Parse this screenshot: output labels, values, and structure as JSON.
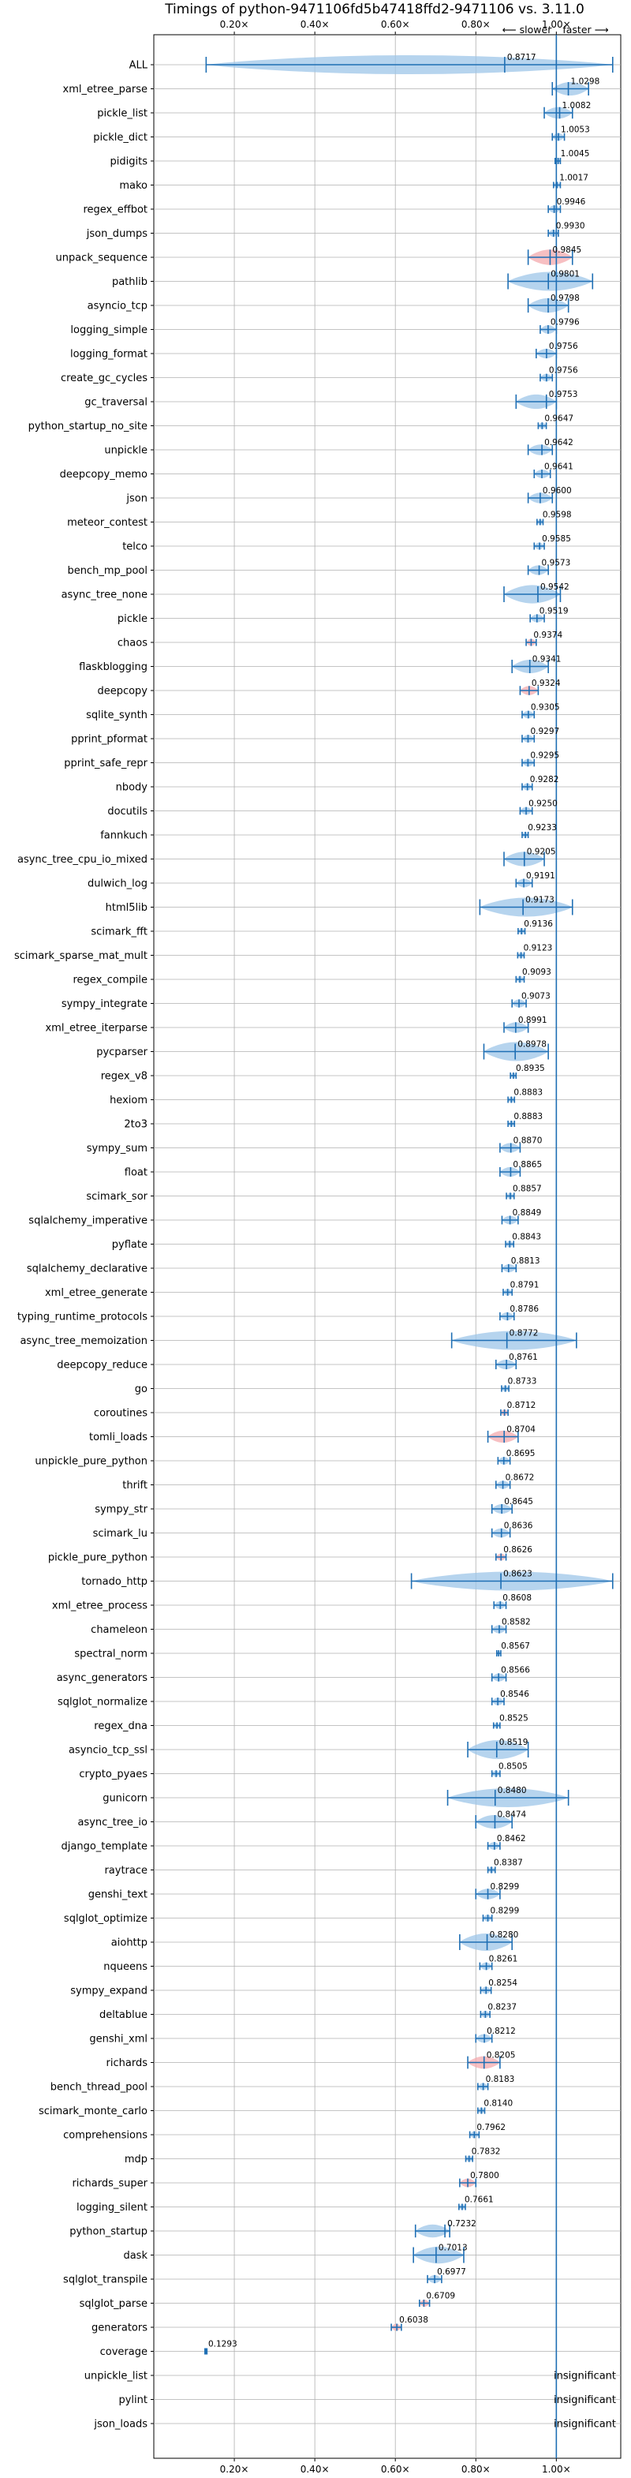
{
  "chart_data": {
    "type": "violin",
    "title": "Timings of python-9471106fd5b47418ffd2-9471106 vs. 3.11.0",
    "xlim": [
      0.0,
      1.16
    ],
    "x_ticks": [
      {
        "value": 0.2,
        "label": "0.20×"
      },
      {
        "value": 0.4,
        "label": "0.40×"
      },
      {
        "value": 0.6,
        "label": "0.60×"
      },
      {
        "value": 0.8,
        "label": "0.80×"
      },
      {
        "value": 1.0,
        "label": "1.00×"
      }
    ],
    "reference_line": 1.0,
    "direction_hint": {
      "slower": "⟵ slower",
      "faster": "faster ⟶"
    },
    "grid": true,
    "benchmarks": [
      {
        "name": "ALL",
        "median": 0.8717,
        "label": "0.8717",
        "min": 0.13,
        "max": 1.14,
        "highlight": false
      },
      {
        "name": "xml_etree_parse",
        "median": 1.0298,
        "label": "1.0298",
        "min": 0.99,
        "max": 1.08,
        "highlight": false
      },
      {
        "name": "pickle_list",
        "median": 1.0082,
        "label": "1.0082",
        "min": 0.97,
        "max": 1.04,
        "highlight": false
      },
      {
        "name": "pickle_dict",
        "median": 1.0053,
        "label": "1.0053",
        "min": 0.99,
        "max": 1.02,
        "highlight": false
      },
      {
        "name": "pidigits",
        "median": 1.0045,
        "label": "1.0045",
        "min": 0.997,
        "max": 1.01,
        "highlight": false
      },
      {
        "name": "mako",
        "median": 1.0017,
        "label": "1.0017",
        "min": 0.993,
        "max": 1.01,
        "highlight": false
      },
      {
        "name": "regex_effbot",
        "median": 0.9946,
        "label": "0.9946",
        "min": 0.98,
        "max": 1.01,
        "highlight": false
      },
      {
        "name": "json_dumps",
        "median": 0.993,
        "label": "0.9930",
        "min": 0.98,
        "max": 1.005,
        "highlight": false
      },
      {
        "name": "unpack_sequence",
        "median": 0.9845,
        "label": "0.9845",
        "min": 0.93,
        "max": 1.04,
        "highlight": true
      },
      {
        "name": "pathlib",
        "median": 0.9801,
        "label": "0.9801",
        "min": 0.88,
        "max": 1.09,
        "highlight": false
      },
      {
        "name": "asyncio_tcp",
        "median": 0.9798,
        "label": "0.9798",
        "min": 0.93,
        "max": 1.03,
        "highlight": false
      },
      {
        "name": "logging_simple",
        "median": 0.9796,
        "label": "0.9796",
        "min": 0.96,
        "max": 1.0,
        "highlight": false
      },
      {
        "name": "logging_format",
        "median": 0.9756,
        "label": "0.9756",
        "min": 0.95,
        "max": 1.0,
        "highlight": false
      },
      {
        "name": "create_gc_cycles",
        "median": 0.9756,
        "label": "0.9756",
        "min": 0.96,
        "max": 0.99,
        "highlight": false
      },
      {
        "name": "gc_traversal",
        "median": 0.9753,
        "label": "0.9753",
        "min": 0.9,
        "max": 1.0,
        "highlight": false
      },
      {
        "name": "python_startup_no_site",
        "median": 0.9647,
        "label": "0.9647",
        "min": 0.955,
        "max": 0.975,
        "highlight": false
      },
      {
        "name": "unpickle",
        "median": 0.9642,
        "label": "0.9642",
        "min": 0.93,
        "max": 0.99,
        "highlight": false
      },
      {
        "name": "deepcopy_memo",
        "median": 0.9641,
        "label": "0.9641",
        "min": 0.945,
        "max": 0.985,
        "highlight": false
      },
      {
        "name": "json",
        "median": 0.96,
        "label": "0.9600",
        "min": 0.93,
        "max": 0.99,
        "highlight": false
      },
      {
        "name": "meteor_contest",
        "median": 0.9598,
        "label": "0.9598",
        "min": 0.952,
        "max": 0.967,
        "highlight": false
      },
      {
        "name": "telco",
        "median": 0.9585,
        "label": "0.9585",
        "min": 0.945,
        "max": 0.97,
        "highlight": false
      },
      {
        "name": "bench_mp_pool",
        "median": 0.9573,
        "label": "0.9573",
        "min": 0.93,
        "max": 0.98,
        "highlight": false
      },
      {
        "name": "async_tree_none",
        "median": 0.9542,
        "label": "0.9542",
        "min": 0.87,
        "max": 1.01,
        "highlight": false
      },
      {
        "name": "pickle",
        "median": 0.9519,
        "label": "0.9519",
        "min": 0.935,
        "max": 0.97,
        "highlight": false
      },
      {
        "name": "chaos",
        "median": 0.9374,
        "label": "0.9374",
        "min": 0.925,
        "max": 0.95,
        "highlight": true
      },
      {
        "name": "flaskblogging",
        "median": 0.9341,
        "label": "0.9341",
        "min": 0.89,
        "max": 0.98,
        "highlight": false
      },
      {
        "name": "deepcopy",
        "median": 0.9324,
        "label": "0.9324",
        "min": 0.91,
        "max": 0.955,
        "highlight": true
      },
      {
        "name": "sqlite_synth",
        "median": 0.9305,
        "label": "0.9305",
        "min": 0.915,
        "max": 0.945,
        "highlight": false
      },
      {
        "name": "pprint_pformat",
        "median": 0.9297,
        "label": "0.9297",
        "min": 0.915,
        "max": 0.945,
        "highlight": false
      },
      {
        "name": "pprint_safe_repr",
        "median": 0.9295,
        "label": "0.9295",
        "min": 0.915,
        "max": 0.945,
        "highlight": false
      },
      {
        "name": "nbody",
        "median": 0.9282,
        "label": "0.9282",
        "min": 0.915,
        "max": 0.94,
        "highlight": false
      },
      {
        "name": "docutils",
        "median": 0.925,
        "label": "0.9250",
        "min": 0.91,
        "max": 0.94,
        "highlight": false
      },
      {
        "name": "fannkuch",
        "median": 0.9233,
        "label": "0.9233",
        "min": 0.915,
        "max": 0.93,
        "highlight": false
      },
      {
        "name": "async_tree_cpu_io_mixed",
        "median": 0.9205,
        "label": "0.9205",
        "min": 0.87,
        "max": 0.97,
        "highlight": false
      },
      {
        "name": "dulwich_log",
        "median": 0.9191,
        "label": "0.9191",
        "min": 0.9,
        "max": 0.94,
        "highlight": false
      },
      {
        "name": "html5lib",
        "median": 0.9173,
        "label": "0.9173",
        "min": 0.81,
        "max": 1.04,
        "highlight": false
      },
      {
        "name": "scimark_fft",
        "median": 0.9136,
        "label": "0.9136",
        "min": 0.905,
        "max": 0.922,
        "highlight": false
      },
      {
        "name": "scimark_sparse_mat_mult",
        "median": 0.9123,
        "label": "0.9123",
        "min": 0.904,
        "max": 0.92,
        "highlight": false
      },
      {
        "name": "regex_compile",
        "median": 0.9093,
        "label": "0.9093",
        "min": 0.9,
        "max": 0.92,
        "highlight": false
      },
      {
        "name": "sympy_integrate",
        "median": 0.9073,
        "label": "0.9073",
        "min": 0.89,
        "max": 0.925,
        "highlight": false
      },
      {
        "name": "xml_etree_iterparse",
        "median": 0.8991,
        "label": "0.8991",
        "min": 0.87,
        "max": 0.93,
        "highlight": false
      },
      {
        "name": "pycparser",
        "median": 0.8978,
        "label": "0.8978",
        "min": 0.82,
        "max": 0.98,
        "highlight": false
      },
      {
        "name": "regex_v8",
        "median": 0.8935,
        "label": "0.8935",
        "min": 0.886,
        "max": 0.9,
        "highlight": false
      },
      {
        "name": "hexiom",
        "median": 0.8883,
        "label": "0.8883",
        "min": 0.88,
        "max": 0.896,
        "highlight": false
      },
      {
        "name": "2to3",
        "median": 0.8883,
        "label": "0.8883",
        "min": 0.88,
        "max": 0.896,
        "highlight": false
      },
      {
        "name": "sympy_sum",
        "median": 0.887,
        "label": "0.8870",
        "min": 0.86,
        "max": 0.91,
        "highlight": false
      },
      {
        "name": "float",
        "median": 0.8865,
        "label": "0.8865",
        "min": 0.86,
        "max": 0.91,
        "highlight": false
      },
      {
        "name": "scimark_sor",
        "median": 0.8857,
        "label": "0.8857",
        "min": 0.876,
        "max": 0.895,
        "highlight": false
      },
      {
        "name": "sqlalchemy_imperative",
        "median": 0.8849,
        "label": "0.8849",
        "min": 0.865,
        "max": 0.905,
        "highlight": false
      },
      {
        "name": "pyflate",
        "median": 0.8843,
        "label": "0.8843",
        "min": 0.874,
        "max": 0.894,
        "highlight": false
      },
      {
        "name": "sqlalchemy_declarative",
        "median": 0.8813,
        "label": "0.8813",
        "min": 0.865,
        "max": 0.9,
        "highlight": false
      },
      {
        "name": "xml_etree_generate",
        "median": 0.8791,
        "label": "0.8791",
        "min": 0.868,
        "max": 0.89,
        "highlight": false
      },
      {
        "name": "typing_runtime_protocols",
        "median": 0.8786,
        "label": "0.8786",
        "min": 0.86,
        "max": 0.895,
        "highlight": false
      },
      {
        "name": "async_tree_memoization",
        "median": 0.8772,
        "label": "0.8772",
        "min": 0.74,
        "max": 1.05,
        "highlight": false
      },
      {
        "name": "deepcopy_reduce",
        "median": 0.8761,
        "label": "0.8761",
        "min": 0.85,
        "max": 0.9,
        "highlight": false
      },
      {
        "name": "go",
        "median": 0.8733,
        "label": "0.8733",
        "min": 0.864,
        "max": 0.882,
        "highlight": false
      },
      {
        "name": "coroutines",
        "median": 0.8712,
        "label": "0.8712",
        "min": 0.862,
        "max": 0.88,
        "highlight": true
      },
      {
        "name": "tomli_loads",
        "median": 0.8704,
        "label": "0.8704",
        "min": 0.83,
        "max": 0.905,
        "highlight": true
      },
      {
        "name": "unpickle_pure_python",
        "median": 0.8695,
        "label": "0.8695",
        "min": 0.855,
        "max": 0.885,
        "highlight": false
      },
      {
        "name": "thrift",
        "median": 0.8672,
        "label": "0.8672",
        "min": 0.85,
        "max": 0.885,
        "highlight": false
      },
      {
        "name": "sympy_str",
        "median": 0.8645,
        "label": "0.8645",
        "min": 0.84,
        "max": 0.89,
        "highlight": false
      },
      {
        "name": "scimark_lu",
        "median": 0.8636,
        "label": "0.8636",
        "min": 0.84,
        "max": 0.885,
        "highlight": false
      },
      {
        "name": "pickle_pure_python",
        "median": 0.8626,
        "label": "0.8626",
        "min": 0.85,
        "max": 0.875,
        "highlight": true
      },
      {
        "name": "tornado_http",
        "median": 0.8623,
        "label": "0.8623",
        "min": 0.64,
        "max": 1.14,
        "highlight": false
      },
      {
        "name": "xml_etree_process",
        "median": 0.8608,
        "label": "0.8608",
        "min": 0.845,
        "max": 0.875,
        "highlight": false
      },
      {
        "name": "chameleon",
        "median": 0.8582,
        "label": "0.8582",
        "min": 0.84,
        "max": 0.875,
        "highlight": false
      },
      {
        "name": "spectral_norm",
        "median": 0.8567,
        "label": "0.8567",
        "min": 0.852,
        "max": 0.862,
        "highlight": false
      },
      {
        "name": "async_generators",
        "median": 0.8566,
        "label": "0.8566",
        "min": 0.84,
        "max": 0.875,
        "highlight": false
      },
      {
        "name": "sqlglot_normalize",
        "median": 0.8546,
        "label": "0.8546",
        "min": 0.84,
        "max": 0.87,
        "highlight": false
      },
      {
        "name": "regex_dna",
        "median": 0.8525,
        "label": "0.8525",
        "min": 0.844,
        "max": 0.86,
        "highlight": false
      },
      {
        "name": "asyncio_tcp_ssl",
        "median": 0.8519,
        "label": "0.8519",
        "min": 0.78,
        "max": 0.93,
        "highlight": false
      },
      {
        "name": "crypto_pyaes",
        "median": 0.8505,
        "label": "0.8505",
        "min": 0.84,
        "max": 0.86,
        "highlight": false
      },
      {
        "name": "gunicorn",
        "median": 0.848,
        "label": "0.8480",
        "min": 0.73,
        "max": 1.03,
        "highlight": false
      },
      {
        "name": "async_tree_io",
        "median": 0.8474,
        "label": "0.8474",
        "min": 0.8,
        "max": 0.89,
        "highlight": false
      },
      {
        "name": "django_template",
        "median": 0.8462,
        "label": "0.8462",
        "min": 0.83,
        "max": 0.86,
        "highlight": false
      },
      {
        "name": "raytrace",
        "median": 0.8387,
        "label": "0.8387",
        "min": 0.83,
        "max": 0.848,
        "highlight": false
      },
      {
        "name": "genshi_text",
        "median": 0.8299,
        "label": "0.8299",
        "min": 0.8,
        "max": 0.86,
        "highlight": false
      },
      {
        "name": "sqlglot_optimize",
        "median": 0.8299,
        "label": "0.8299",
        "min": 0.818,
        "max": 0.84,
        "highlight": false
      },
      {
        "name": "aiohttp",
        "median": 0.828,
        "label": "0.8280",
        "min": 0.76,
        "max": 0.89,
        "highlight": false
      },
      {
        "name": "nqueens",
        "median": 0.8261,
        "label": "0.8261",
        "min": 0.81,
        "max": 0.84,
        "highlight": false
      },
      {
        "name": "sympy_expand",
        "median": 0.8254,
        "label": "0.8254",
        "min": 0.812,
        "max": 0.838,
        "highlight": false
      },
      {
        "name": "deltablue",
        "median": 0.8237,
        "label": "0.8237",
        "min": 0.812,
        "max": 0.835,
        "highlight": false
      },
      {
        "name": "genshi_xml",
        "median": 0.8212,
        "label": "0.8212",
        "min": 0.8,
        "max": 0.84,
        "highlight": false
      },
      {
        "name": "richards",
        "median": 0.8205,
        "label": "0.8205",
        "min": 0.78,
        "max": 0.86,
        "highlight": true
      },
      {
        "name": "bench_thread_pool",
        "median": 0.8183,
        "label": "0.8183",
        "min": 0.805,
        "max": 0.83,
        "highlight": false
      },
      {
        "name": "scimark_monte_carlo",
        "median": 0.814,
        "label": "0.8140",
        "min": 0.805,
        "max": 0.822,
        "highlight": false
      },
      {
        "name": "comprehensions",
        "median": 0.7962,
        "label": "0.7962",
        "min": 0.785,
        "max": 0.808,
        "highlight": false
      },
      {
        "name": "mdp",
        "median": 0.7832,
        "label": "0.7832",
        "min": 0.775,
        "max": 0.792,
        "highlight": false
      },
      {
        "name": "richards_super",
        "median": 0.78,
        "label": "0.7800",
        "min": 0.76,
        "max": 0.8,
        "highlight": true
      },
      {
        "name": "logging_silent",
        "median": 0.7661,
        "label": "0.7661",
        "min": 0.758,
        "max": 0.774,
        "highlight": false
      },
      {
        "name": "python_startup",
        "median": 0.7232,
        "label": "0.7232",
        "min": 0.65,
        "max": 0.735,
        "highlight": false
      },
      {
        "name": "dask",
        "median": 0.7013,
        "label": "0.7013",
        "min": 0.645,
        "max": 0.77,
        "highlight": false
      },
      {
        "name": "sqlglot_transpile",
        "median": 0.6977,
        "label": "0.6977",
        "min": 0.68,
        "max": 0.715,
        "highlight": false
      },
      {
        "name": "sqlglot_parse",
        "median": 0.6709,
        "label": "0.6709",
        "min": 0.66,
        "max": 0.685,
        "highlight": true
      },
      {
        "name": "generators",
        "median": 0.6038,
        "label": "0.6038",
        "min": 0.59,
        "max": 0.615,
        "highlight": true
      },
      {
        "name": "coverage",
        "median": 0.1293,
        "label": "0.1293",
        "min": 0.127,
        "max": 0.132,
        "highlight": false
      },
      {
        "name": "unpickle_list",
        "insignificant": true,
        "label": "insignificant"
      },
      {
        "name": "pylint",
        "insignificant": true,
        "label": "insignificant"
      },
      {
        "name": "json_loads",
        "insignificant": true,
        "label": "insignificant"
      }
    ]
  }
}
